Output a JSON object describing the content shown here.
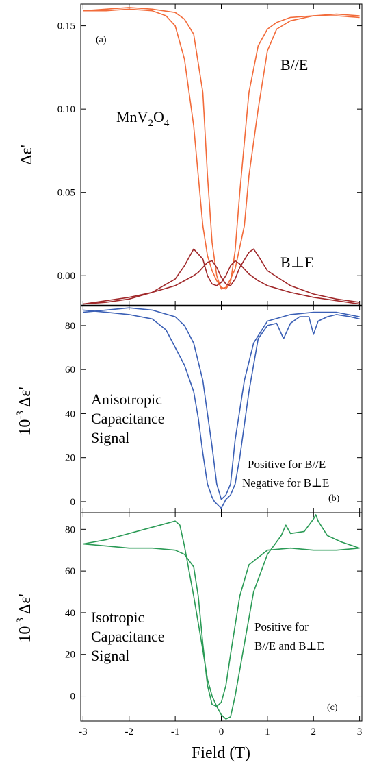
{
  "xlabel": "Field (T)",
  "chart_data": [
    {
      "panel": "(a)",
      "type": "line",
      "ylabel": "Δε'",
      "xlim": [
        -3.05,
        3.05
      ],
      "ylim": [
        -0.018,
        0.163
      ],
      "yticks": [
        0.15,
        0.1,
        0.05,
        0.0
      ],
      "ytick_labels": [
        "0.15",
        "0.10",
        "0.05",
        "0.00"
      ],
      "xticks": [
        -3,
        -2,
        -1,
        0,
        1,
        2,
        3
      ],
      "annotations": [
        {
          "id": "compound",
          "text": "MnV",
          "sub1": "2",
          "mid": "O",
          "sub2": "4"
        },
        {
          "id": "parallel",
          "text": "B//E"
        },
        {
          "id": "perp",
          "text": "B⊥E"
        }
      ],
      "series": [
        {
          "color": "#f26b3a",
          "x": [
            -3.0,
            -2.5,
            -2.0,
            -1.5,
            -1.2,
            -1.0,
            -0.8,
            -0.6,
            -0.5,
            -0.4,
            -0.3,
            -0.2,
            -0.1,
            0.0,
            0.1,
            0.2,
            0.3,
            0.4,
            0.6,
            0.8,
            1.0,
            1.2,
            1.5,
            2.0,
            2.5,
            3.0
          ],
          "y": [
            0.159,
            0.159,
            0.16,
            0.159,
            0.156,
            0.15,
            0.13,
            0.09,
            0.06,
            0.03,
            0.012,
            0.003,
            -0.003,
            -0.007,
            -0.008,
            -0.004,
            0.015,
            0.05,
            0.11,
            0.138,
            0.148,
            0.152,
            0.155,
            0.156,
            0.156,
            0.155
          ]
        },
        {
          "color": "#f26b3a",
          "x": [
            -3.0,
            -2.5,
            -2.0,
            -1.5,
            -1.0,
            -0.8,
            -0.6,
            -0.4,
            -0.3,
            -0.2,
            -0.1,
            0.0,
            0.1,
            0.2,
            0.3,
            0.5,
            0.6,
            0.8,
            1.0,
            1.2,
            1.5,
            2.0,
            2.5,
            3.0
          ],
          "y": [
            0.159,
            0.16,
            0.161,
            0.16,
            0.158,
            0.154,
            0.145,
            0.11,
            0.06,
            0.02,
            0.0,
            -0.008,
            -0.007,
            -0.002,
            0.004,
            0.03,
            0.06,
            0.1,
            0.135,
            0.148,
            0.153,
            0.156,
            0.157,
            0.156
          ]
        },
        {
          "color": "#a0282a",
          "x": [
            -3.0,
            -2.5,
            -2.0,
            -1.5,
            -1.0,
            -0.8,
            -0.6,
            -0.4,
            -0.3,
            -0.2,
            -0.1,
            0.0,
            0.1,
            0.2,
            0.3,
            0.4,
            0.5,
            0.6,
            0.8,
            1.0,
            1.5,
            2.0,
            2.5,
            3.0
          ],
          "y": [
            -0.017,
            -0.016,
            -0.014,
            -0.01,
            -0.002,
            0.006,
            0.016,
            0.01,
            0.0,
            -0.005,
            -0.006,
            -0.004,
            0.0,
            0.006,
            0.009,
            0.007,
            0.004,
            0.001,
            -0.003,
            -0.006,
            -0.01,
            -0.013,
            -0.015,
            -0.017
          ]
        },
        {
          "color": "#a0282a",
          "x": [
            -3.0,
            -2.5,
            -2.0,
            -1.5,
            -1.0,
            -0.8,
            -0.6,
            -0.5,
            -0.4,
            -0.3,
            -0.2,
            -0.1,
            0.0,
            0.1,
            0.2,
            0.3,
            0.4,
            0.6,
            0.7,
            0.8,
            1.0,
            1.5,
            2.0,
            2.5,
            3.0
          ],
          "y": [
            -0.017,
            -0.015,
            -0.013,
            -0.01,
            -0.006,
            -0.003,
            0.0,
            0.002,
            0.005,
            0.008,
            0.009,
            0.005,
            -0.001,
            -0.005,
            -0.006,
            -0.002,
            0.005,
            0.014,
            0.016,
            0.012,
            0.003,
            -0.006,
            -0.011,
            -0.014,
            -0.016
          ]
        }
      ]
    },
    {
      "panel": "(b)",
      "type": "line",
      "ylabel": "10",
      "ylabel_exp": "-3",
      "ylabel_sym": "Δε'",
      "xlim": [
        -3.05,
        3.05
      ],
      "ylim": [
        -5,
        89
      ],
      "yticks": [
        80,
        60,
        40,
        20,
        0
      ],
      "ytick_labels": [
        "80",
        "60",
        "40",
        "20",
        "0"
      ],
      "xticks": [
        -3,
        -2,
        -1,
        0,
        1,
        2,
        3
      ],
      "annotations": [
        {
          "id": "anisotropic",
          "lines": [
            "Anisotropic",
            "Capacitance",
            "Signal"
          ]
        },
        {
          "id": "positive",
          "text": "Positive for  B//E"
        },
        {
          "id": "negative",
          "text": "Negative for  B⊥E"
        }
      ],
      "series": [
        {
          "color": "#3a5fb5",
          "x": [
            -3.0,
            -2.5,
            -2.0,
            -1.5,
            -1.2,
            -1.0,
            -0.8,
            -0.6,
            -0.5,
            -0.4,
            -0.3,
            -0.2,
            -0.15,
            -0.1,
            -0.05,
            0.0,
            0.05,
            0.1,
            0.2,
            0.3,
            0.4,
            0.6,
            0.8,
            1.0,
            1.2,
            1.35,
            1.5,
            1.7,
            1.9,
            2.0,
            2.1,
            2.3,
            2.5,
            2.8,
            3.0
          ],
          "y": [
            87,
            86,
            85,
            83,
            78,
            70,
            62,
            50,
            38,
            22,
            8,
            2,
            0,
            -1,
            -2,
            -3,
            -1,
            1,
            3,
            8,
            20,
            50,
            74,
            80,
            81,
            74,
            81,
            84,
            84,
            76,
            82,
            84,
            85,
            84,
            83
          ]
        },
        {
          "color": "#3a5fb5",
          "x": [
            -3.0,
            -2.5,
            -2.0,
            -1.5,
            -1.0,
            -0.8,
            -0.6,
            -0.4,
            -0.2,
            -0.1,
            0.0,
            0.1,
            0.2,
            0.3,
            0.5,
            0.7,
            1.0,
            1.5,
            2.0,
            2.5,
            3.0
          ],
          "y": [
            86,
            87,
            88,
            87,
            84,
            80,
            72,
            55,
            25,
            8,
            1,
            3,
            8,
            28,
            55,
            72,
            82,
            85,
            86,
            86,
            84
          ]
        }
      ]
    },
    {
      "panel": "(c)",
      "type": "line",
      "ylabel": "10",
      "ylabel_exp": "-3",
      "ylabel_sym": "Δε'",
      "xlim": [
        -3.05,
        3.05
      ],
      "ylim": [
        -12,
        88
      ],
      "yticks": [
        80,
        60,
        40,
        20,
        0
      ],
      "ytick_labels": [
        "80",
        "60",
        "40",
        "20",
        "0"
      ],
      "xticks": [
        -3,
        -2,
        -1,
        0,
        1,
        2,
        3
      ],
      "xtick_labels": [
        "-3",
        "-2",
        "-1",
        "0",
        "1",
        "2",
        "3"
      ],
      "annotations": [
        {
          "id": "isotropic",
          "lines": [
            "Isotropic",
            "Capacitance",
            "Signal"
          ]
        },
        {
          "id": "positive-both",
          "lines": [
            "Positive for",
            "B//E and B⊥E"
          ]
        }
      ],
      "series": [
        {
          "color": "#2a9a55",
          "x": [
            -3.0,
            -2.5,
            -2.0,
            -1.5,
            -1.0,
            -0.9,
            -0.8,
            -0.6,
            -0.4,
            -0.3,
            -0.2,
            -0.1,
            0.0,
            0.1,
            0.2,
            0.3,
            0.5,
            0.7,
            1.0,
            1.3,
            1.4,
            1.5,
            1.8,
            2.0,
            2.05,
            2.1,
            2.3,
            2.6,
            3.0
          ],
          "y": [
            73,
            75,
            78,
            81,
            84,
            82,
            72,
            48,
            22,
            8,
            0,
            -5,
            -9,
            -11,
            -10,
            0,
            25,
            50,
            68,
            77,
            82,
            78,
            79,
            85,
            87,
            84,
            77,
            74,
            71
          ]
        },
        {
          "color": "#2a9a55",
          "x": [
            -3.0,
            -2.5,
            -2.0,
            -1.5,
            -1.0,
            -0.8,
            -0.6,
            -0.5,
            -0.4,
            -0.3,
            -0.2,
            -0.1,
            0.0,
            0.1,
            0.2,
            0.4,
            0.6,
            1.0,
            1.5,
            2.0,
            2.5,
            3.0
          ],
          "y": [
            73,
            72,
            71,
            71,
            70,
            68,
            62,
            48,
            25,
            5,
            -4,
            -5,
            -3,
            5,
            20,
            48,
            63,
            70,
            71,
            70,
            70,
            71
          ]
        }
      ]
    }
  ]
}
